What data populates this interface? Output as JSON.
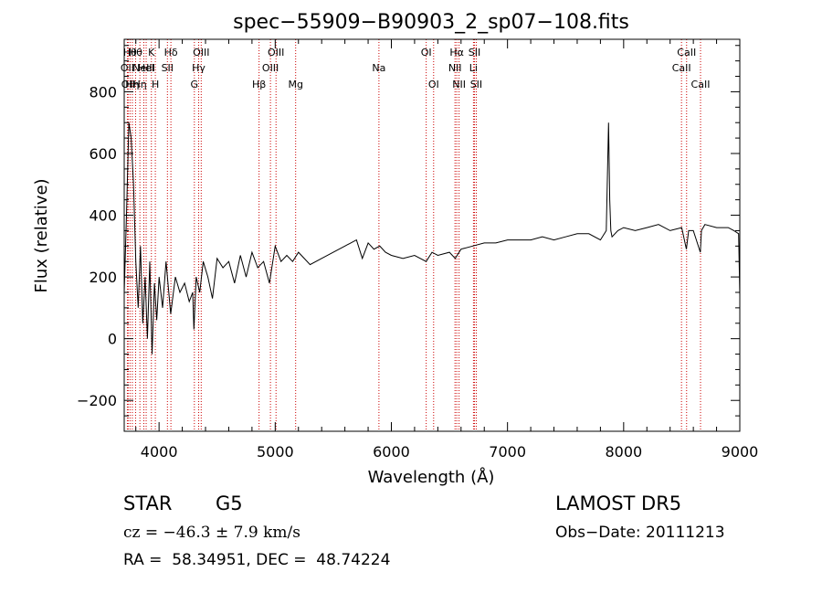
{
  "chart_data": {
    "type": "line",
    "title": "spec−55909−B90903_2_sp07−108.fits",
    "xlabel": "Wavelength (Å)",
    "ylabel": "Flux (relative)",
    "xlim": [
      3700,
      9000
    ],
    "ylim": [
      -300,
      970
    ],
    "xticks": [
      4000,
      5000,
      6000,
      7000,
      8000,
      9000
    ],
    "yticks": [
      -200,
      0,
      200,
      400,
      600,
      800
    ],
    "grid": false,
    "line_color": "#000000",
    "marker_color": "#cc0000",
    "series": [
      {
        "x": [
          3700,
          3720,
          3740,
          3760,
          3780,
          3800,
          3820,
          3840,
          3860,
          3880,
          3900,
          3920,
          3940,
          3960,
          3980,
          4000,
          4030,
          4060,
          4100,
          4140,
          4180,
          4220,
          4260,
          4290,
          4300,
          4320,
          4350,
          4380,
          4420,
          4460,
          4500,
          4550,
          4600,
          4650,
          4700,
          4750,
          4800,
          4850,
          4900,
          4950,
          5000,
          5050,
          5100,
          5150,
          5200,
          5300,
          5400,
          5500,
          5600,
          5700,
          5750,
          5800,
          5850,
          5900,
          5950,
          6000,
          6100,
          6200,
          6300,
          6350,
          6400,
          6500,
          6550,
          6600,
          6700,
          6800,
          6900,
          7000,
          7100,
          7200,
          7300,
          7400,
          7500,
          7600,
          7700,
          7800,
          7850,
          7870,
          7880,
          7890,
          7900,
          7950,
          8000,
          8100,
          8200,
          8300,
          8400,
          8500,
          8540,
          8560,
          8600,
          8660,
          8670,
          8700,
          8800,
          8900,
          8950,
          8990,
          9000
        ],
        "values": [
          150,
          400,
          700,
          650,
          500,
          250,
          100,
          300,
          50,
          200,
          0,
          250,
          -50,
          180,
          60,
          200,
          100,
          250,
          80,
          200,
          150,
          180,
          120,
          150,
          30,
          200,
          150,
          250,
          200,
          130,
          260,
          230,
          250,
          180,
          270,
          200,
          280,
          230,
          250,
          180,
          300,
          250,
          270,
          250,
          280,
          240,
          260,
          280,
          300,
          320,
          260,
          310,
          290,
          300,
          280,
          270,
          260,
          270,
          250,
          280,
          270,
          280,
          260,
          290,
          300,
          310,
          310,
          320,
          320,
          320,
          330,
          320,
          330,
          340,
          340,
          320,
          350,
          700,
          450,
          350,
          330,
          350,
          360,
          350,
          360,
          370,
          350,
          360,
          290,
          350,
          350,
          280,
          350,
          370,
          360,
          360,
          350,
          340,
          140
        ]
      }
    ],
    "markers": [
      {
        "x": 3727,
        "label": "OII",
        "row": 2
      },
      {
        "x": 3734,
        "label": "OII",
        "row": 3
      },
      {
        "x": 3750,
        "label": "Hθ",
        "row": 1
      },
      {
        "x": 3770,
        "label": "Hη",
        "row": 3
      },
      {
        "x": 3798,
        "label": "Hθ",
        "row": 1
      },
      {
        "x": 3835,
        "label": "Hη",
        "row": 3
      },
      {
        "x": 3869,
        "label": "NeIII",
        "row": 2
      },
      {
        "x": 3889,
        "label": "HeI",
        "row": 2
      },
      {
        "x": 3934,
        "label": "K",
        "row": 1
      },
      {
        "x": 3968,
        "label": "H",
        "row": 3
      },
      {
        "x": 4072,
        "label": "SII",
        "row": 2
      },
      {
        "x": 4102,
        "label": "Hδ",
        "row": 1
      },
      {
        "x": 4304,
        "label": "G",
        "row": 3
      },
      {
        "x": 4341,
        "label": "Hγ",
        "row": 2
      },
      {
        "x": 4363,
        "label": "OIII",
        "row": 1
      },
      {
        "x": 4861,
        "label": "Hβ",
        "row": 3
      },
      {
        "x": 4959,
        "label": "OIII",
        "row": 2
      },
      {
        "x": 5007,
        "label": "OIII",
        "row": 1
      },
      {
        "x": 5176,
        "label": "Mg",
        "row": 3
      },
      {
        "x": 5893,
        "label": "Na",
        "row": 2
      },
      {
        "x": 6300,
        "label": "OI",
        "row": 1
      },
      {
        "x": 6364,
        "label": "OI",
        "row": 3
      },
      {
        "x": 6548,
        "label": "NII",
        "row": 2
      },
      {
        "x": 6563,
        "label": "Hα",
        "row": 1
      },
      {
        "x": 6583,
        "label": "NII",
        "row": 3
      },
      {
        "x": 6707,
        "label": "Li",
        "row": 2
      },
      {
        "x": 6716,
        "label": "SII",
        "row": 1
      },
      {
        "x": 6731,
        "label": "SII",
        "row": 3
      },
      {
        "x": 8498,
        "label": "CaII",
        "row": 2
      },
      {
        "x": 8542,
        "label": "CaII",
        "row": 1
      },
      {
        "x": 8662,
        "label": "CaII",
        "row": 3
      }
    ]
  },
  "info": {
    "object_class": "STAR",
    "subclass": "G5",
    "survey": "LAMOST DR5",
    "redshift": "cz = −46.3 ± 7.9 km/s",
    "obs_date": "Obs−Date: 20111213",
    "coords": "RA =  58.34951, DEC =  48.74224"
  }
}
